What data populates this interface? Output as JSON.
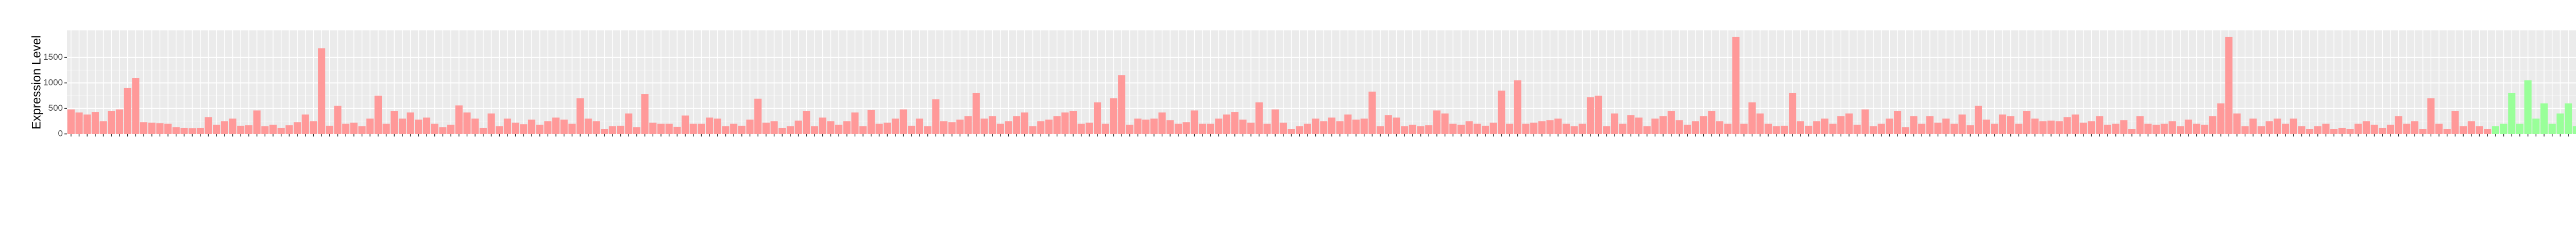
{
  "chart_data": {
    "type": "bar",
    "y_label": "Expression Level",
    "ylim": [
      0,
      2030
    ],
    "yticks": [
      0,
      500,
      1000,
      1500
    ],
    "grid": true,
    "groups": [
      {
        "color": "#ff9999",
        "values": [
          480,
          420,
          380,
          430,
          250,
          450,
          480,
          900,
          1100,
          230,
          220,
          210,
          200,
          130,
          120,
          110,
          120,
          330,
          180,
          250,
          300,
          160,
          170,
          460,
          150,
          180,
          120,
          170,
          230,
          380,
          250,
          1680,
          160,
          550,
          200,
          220,
          150,
          300,
          750,
          200,
          450,
          300,
          420,
          280,
          320,
          200,
          130,
          180,
          560,
          420,
          300,
          120,
          400,
          150,
          300,
          220,
          190,
          280,
          180,
          250,
          320,
          280,
          200,
          700,
          300,
          250,
          100,
          150,
          160,
          400,
          130,
          780,
          220,
          200,
          200,
          140,
          360,
          200,
          200,
          320,
          300,
          150,
          200,
          160,
          280,
          690,
          220,
          250,
          120,
          150,
          260,
          450,
          150,
          320,
          250,
          180,
          250,
          420,
          150,
          470,
          200,
          220,
          300,
          480,
          160,
          300,
          150,
          680,
          250,
          230,
          280,
          350,
          800,
          300,
          350,
          200,
          250,
          350,
          420,
          150,
          250,
          280,
          350,
          420,
          450,
          200,
          220,
          620,
          200,
          700,
          1150,
          180,
          300,
          280,
          300,
          420,
          270,
          200,
          230,
          460,
          200,
          200,
          300,
          380,
          430,
          280,
          220,
          620,
          200,
          480,
          220,
          100,
          150,
          200,
          300,
          250,
          320,
          250,
          380,
          280,
          300,
          830,
          150,
          370,
          320,
          150,
          180,
          150,
          170,
          460,
          400,
          200,
          180,
          250,
          200,
          160,
          220,
          850,
          200,
          1050,
          200,
          220,
          250,
          270,
          300,
          200,
          150,
          200,
          720,
          750,
          150,
          400,
          200,
          370,
          320,
          150,
          300,
          350,
          450,
          270,
          180,
          250,
          350,
          450,
          250,
          200,
          1900,
          200,
          620,
          400,
          200,
          150,
          160,
          800,
          250,
          160,
          250,
          300,
          200,
          350,
          400,
          180,
          480,
          150,
          200,
          300,
          450,
          130,
          350,
          200,
          350,
          220,
          300,
          200,
          380,
          170,
          550,
          280,
          200,
          380,
          350,
          200,
          450,
          300,
          250,
          260,
          250,
          330,
          380,
          220,
          250,
          350,
          180,
          200,
          270,
          100,
          350,
          200,
          180,
          200,
          250,
          150,
          280,
          200,
          180,
          350,
          600,
          1900,
          400,
          150,
          300,
          150,
          250,
          300,
          200,
          300,
          150,
          100,
          150,
          200,
          100,
          120,
          100,
          200,
          250,
          180,
          120,
          180,
          350,
          200,
          250,
          100,
          700,
          200,
          100,
          450,
          150,
          250,
          150,
          100
        ]
      },
      {
        "color": "#99ff99",
        "values": [
          150,
          200,
          800,
          200,
          1050,
          300,
          600,
          200,
          400,
          600,
          150,
          250,
          300
        ]
      }
    ]
  }
}
